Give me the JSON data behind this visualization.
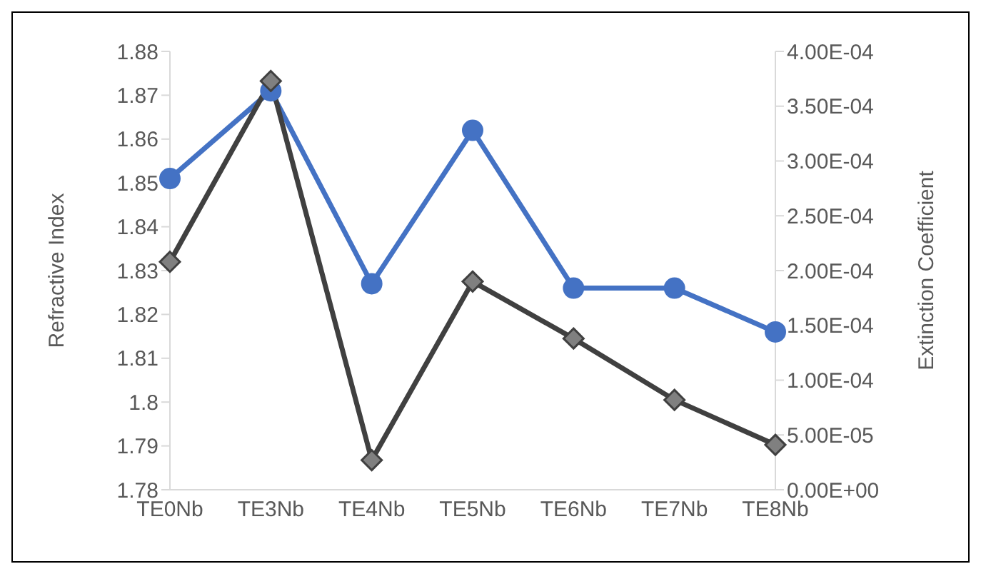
{
  "chart_data": {
    "type": "line",
    "categories": [
      "TE0Nb",
      "TE3Nb",
      "TE4Nb",
      "TE5Nb",
      "TE6Nb",
      "TE7Nb",
      "TE8Nb"
    ],
    "ylabel": "Refractive Index",
    "y2label": "Extinction Coefficient",
    "ylim": [
      1.78,
      1.88
    ],
    "yticks": [
      1.78,
      1.79,
      1.8,
      1.81,
      1.82,
      1.83,
      1.84,
      1.85,
      1.86,
      1.87,
      1.88
    ],
    "y2lim": [
      0,
      0.0004
    ],
    "y2ticks": [
      {
        "value": 0,
        "label": "0.00E+00"
      },
      {
        "value": 5e-05,
        "label": "5.00E-05"
      },
      {
        "value": 0.0001,
        "label": "1.00E-04"
      },
      {
        "value": 0.00015,
        "label": "1.50E-04"
      },
      {
        "value": 0.0002,
        "label": "2.00E-04"
      },
      {
        "value": 0.00025,
        "label": "2.50E-04"
      },
      {
        "value": 0.0003,
        "label": "3.00E-04"
      },
      {
        "value": 0.00035,
        "label": "3.50E-04"
      },
      {
        "value": 0.0004,
        "label": "4.00E-04"
      }
    ],
    "grid": false,
    "legend": false,
    "series": [
      {
        "color": "#4472c4",
        "marker": "circle",
        "values": [
          1.851,
          1.871,
          1.827,
          1.862,
          1.826,
          1.826,
          1.816
        ]
      },
      {
        "color": "#404040",
        "marker": "diamond",
        "axis": "y2",
        "values": [
          0.000208,
          0.000373,
          2.7e-05,
          0.00019,
          0.000138,
          8.2e-05,
          4.1e-05
        ]
      }
    ]
  }
}
